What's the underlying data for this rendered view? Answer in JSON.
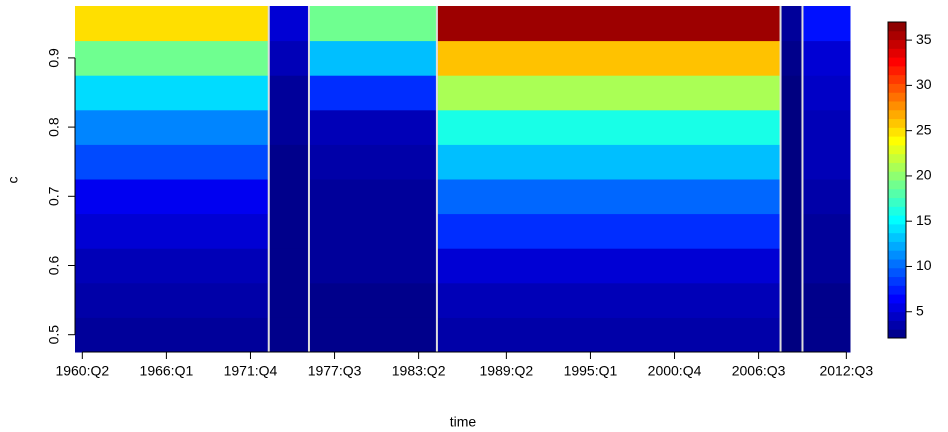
{
  "chart_data": {
    "type": "heatmap",
    "xlabel": "time",
    "ylabel": "c",
    "x_edges": [
      1959.75,
      1973,
      1975.75,
      1984.5,
      2008,
      2009.5,
      2012.75
    ],
    "y": [
      0.5,
      0.55,
      0.6,
      0.65,
      0.7,
      0.75,
      0.8,
      0.85,
      0.9,
      0.95
    ],
    "values": [
      [
        3,
        3.5,
        4,
        5,
        6,
        9,
        11,
        14,
        19,
        25
      ],
      [
        2.5,
        2.5,
        2.5,
        2.5,
        2.5,
        2.5,
        3,
        3,
        4,
        5
      ],
      [
        2.5,
        2.5,
        3,
        3,
        3,
        3.5,
        4,
        8,
        13,
        19
      ],
      [
        3.5,
        4,
        5,
        8,
        10,
        13,
        16,
        21,
        26,
        36
      ],
      [
        2,
        2,
        2,
        2,
        2,
        2,
        2,
        2,
        2.5,
        3
      ],
      [
        2.5,
        2.5,
        3,
        3,
        3.5,
        4,
        4,
        4.5,
        5,
        7
      ]
    ],
    "xlim": [
      1959.75,
      2012.75
    ],
    "ylim": [
      0.475,
      0.975
    ],
    "xticks": [
      {
        "value": 1960.25,
        "label": "1960:Q2"
      },
      {
        "value": 1966,
        "label": "1966:Q1"
      },
      {
        "value": 1971.75,
        "label": "1971:Q4"
      },
      {
        "value": 1977.5,
        "label": "1977:Q3"
      },
      {
        "value": 1983.25,
        "label": "1983:Q2"
      },
      {
        "value": 1989.25,
        "label": "1989:Q2"
      },
      {
        "value": 1995,
        "label": "1995:Q1"
      },
      {
        "value": 2000.75,
        "label": "2000:Q4"
      },
      {
        "value": 2006.5,
        "label": "2006:Q3"
      },
      {
        "value": 2012.5,
        "label": "2012:Q3"
      }
    ],
    "yticks": [
      0.5,
      0.6,
      0.7,
      0.8,
      0.9
    ],
    "zlim": [
      2.1,
      37
    ],
    "zticks": [
      5,
      10,
      15,
      20,
      25,
      30,
      35
    ],
    "colormap": "jet"
  }
}
